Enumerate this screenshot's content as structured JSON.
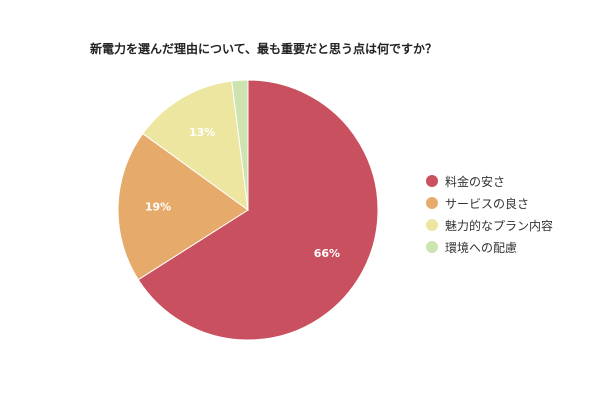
{
  "chart_data": {
    "type": "pie",
    "title": "新電力を選んだ理由について、最も重要だと思う点は何ですか？",
    "legend_position": "right",
    "slices": [
      {
        "name": "料金の安さ",
        "value": 66,
        "label": "66%",
        "color": "#c9505e"
      },
      {
        "name": "サービスの良さ",
        "value": 19,
        "label": "19%",
        "color": "#e6ab6a"
      },
      {
        "name": "魅力的なプラン内容",
        "value": 13,
        "label": "13%",
        "color": "#ede6a0"
      },
      {
        "name": "環境への配慮",
        "value": 2,
        "label": "",
        "color": "#cde3b0"
      }
    ]
  }
}
